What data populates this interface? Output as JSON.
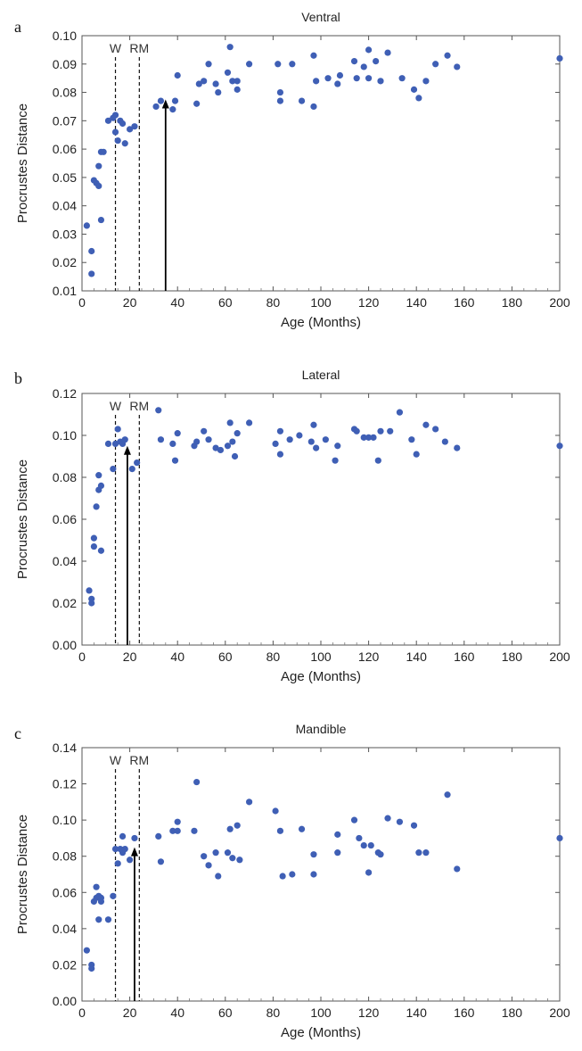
{
  "chart_data": [
    {
      "type": "scatter",
      "panel_letter": "a",
      "title": "Ventral",
      "xlabel": "Age (Months)",
      "ylabel": "Procrustes Distance",
      "xlim": [
        0,
        200
      ],
      "ylim": [
        0.01,
        0.1
      ],
      "xticks": [
        0,
        20,
        40,
        60,
        80,
        100,
        120,
        140,
        160,
        180,
        200
      ],
      "yticks": [
        0.01,
        0.02,
        0.03,
        0.04,
        0.05,
        0.06,
        0.07,
        0.08,
        0.09,
        0.1
      ],
      "ytick_labels": [
        "0.01",
        "0.02",
        "0.03",
        "0.04",
        "0.05",
        "0.06",
        "0.07",
        "0.08",
        "0.09",
        "0.10"
      ],
      "markers": [
        {
          "label": "W",
          "x": 14
        },
        {
          "label": "RM",
          "x": 24
        }
      ],
      "arrow": {
        "x": 35,
        "y_end": 0.0775
      },
      "point_color": "#3f5fb5",
      "points": [
        [
          2,
          0.033
        ],
        [
          4,
          0.024
        ],
        [
          4,
          0.016
        ],
        [
          5,
          0.049
        ],
        [
          6,
          0.048
        ],
        [
          7,
          0.054
        ],
        [
          7,
          0.047
        ],
        [
          8,
          0.059
        ],
        [
          8,
          0.035
        ],
        [
          9,
          0.059
        ],
        [
          11,
          0.07
        ],
        [
          13,
          0.071
        ],
        [
          14,
          0.072
        ],
        [
          14,
          0.066
        ],
        [
          15,
          0.063
        ],
        [
          16,
          0.07
        ],
        [
          17,
          0.069
        ],
        [
          18,
          0.062
        ],
        [
          20,
          0.067
        ],
        [
          22,
          0.068
        ],
        [
          31,
          0.075
        ],
        [
          33,
          0.077
        ],
        [
          38,
          0.074
        ],
        [
          39,
          0.077
        ],
        [
          40,
          0.086
        ],
        [
          48,
          0.076
        ],
        [
          49,
          0.083
        ],
        [
          51,
          0.084
        ],
        [
          53,
          0.09
        ],
        [
          56,
          0.083
        ],
        [
          57,
          0.08
        ],
        [
          61,
          0.087
        ],
        [
          62,
          0.096
        ],
        [
          63,
          0.084
        ],
        [
          65,
          0.084
        ],
        [
          65,
          0.081
        ],
        [
          70,
          0.09
        ],
        [
          82,
          0.09
        ],
        [
          83,
          0.08
        ],
        [
          83,
          0.077
        ],
        [
          88,
          0.09
        ],
        [
          92,
          0.077
        ],
        [
          97,
          0.075
        ],
        [
          97,
          0.093
        ],
        [
          98,
          0.084
        ],
        [
          103,
          0.085
        ],
        [
          107,
          0.083
        ],
        [
          108,
          0.086
        ],
        [
          114,
          0.091
        ],
        [
          115,
          0.085
        ],
        [
          118,
          0.089
        ],
        [
          120,
          0.095
        ],
        [
          120,
          0.085
        ],
        [
          123,
          0.091
        ],
        [
          125,
          0.084
        ],
        [
          128,
          0.094
        ],
        [
          134,
          0.085
        ],
        [
          139,
          0.081
        ],
        [
          141,
          0.078
        ],
        [
          144,
          0.084
        ],
        [
          148,
          0.09
        ],
        [
          153,
          0.093
        ],
        [
          157,
          0.089
        ],
        [
          200,
          0.092
        ]
      ]
    },
    {
      "type": "scatter",
      "panel_letter": "b",
      "title": "Lateral",
      "xlabel": "Age (Months)",
      "ylabel": "Procrustes Distance",
      "xlim": [
        0,
        200
      ],
      "ylim": [
        0.0,
        0.12
      ],
      "xticks": [
        0,
        20,
        40,
        60,
        80,
        100,
        120,
        140,
        160,
        180,
        200
      ],
      "yticks": [
        0.0,
        0.02,
        0.04,
        0.06,
        0.08,
        0.1,
        0.12
      ],
      "ytick_labels": [
        "0.00",
        "0.02",
        "0.04",
        "0.06",
        "0.08",
        "0.10",
        "0.12"
      ],
      "markers": [
        {
          "label": "W",
          "x": 14
        },
        {
          "label": "RM",
          "x": 24
        }
      ],
      "arrow": {
        "x": 19,
        "y_end": 0.095
      },
      "point_color": "#3f5fb5",
      "points": [
        [
          3,
          0.026
        ],
        [
          4,
          0.022
        ],
        [
          4,
          0.02
        ],
        [
          5,
          0.051
        ],
        [
          5,
          0.047
        ],
        [
          6,
          0.066
        ],
        [
          7,
          0.074
        ],
        [
          7,
          0.081
        ],
        [
          8,
          0.076
        ],
        [
          8,
          0.045
        ],
        [
          11,
          0.096
        ],
        [
          13,
          0.084
        ],
        [
          14,
          0.096
        ],
        [
          15,
          0.103
        ],
        [
          16,
          0.097
        ],
        [
          17,
          0.096
        ],
        [
          18,
          0.098
        ],
        [
          21,
          0.084
        ],
        [
          23,
          0.087
        ],
        [
          32,
          0.112
        ],
        [
          33,
          0.098
        ],
        [
          38,
          0.096
        ],
        [
          39,
          0.088
        ],
        [
          40,
          0.101
        ],
        [
          47,
          0.095
        ],
        [
          48,
          0.097
        ],
        [
          51,
          0.102
        ],
        [
          53,
          0.098
        ],
        [
          56,
          0.094
        ],
        [
          58,
          0.093
        ],
        [
          61,
          0.095
        ],
        [
          62,
          0.106
        ],
        [
          63,
          0.097
        ],
        [
          64,
          0.09
        ],
        [
          65,
          0.101
        ],
        [
          70,
          0.106
        ],
        [
          81,
          0.096
        ],
        [
          83,
          0.102
        ],
        [
          83,
          0.091
        ],
        [
          87,
          0.098
        ],
        [
          91,
          0.1
        ],
        [
          96,
          0.097
        ],
        [
          97,
          0.105
        ],
        [
          98,
          0.094
        ],
        [
          102,
          0.098
        ],
        [
          106,
          0.088
        ],
        [
          107,
          0.095
        ],
        [
          114,
          0.103
        ],
        [
          115,
          0.102
        ],
        [
          118,
          0.099
        ],
        [
          120,
          0.099
        ],
        [
          122,
          0.099
        ],
        [
          124,
          0.088
        ],
        [
          125,
          0.102
        ],
        [
          129,
          0.102
        ],
        [
          133,
          0.111
        ],
        [
          138,
          0.098
        ],
        [
          140,
          0.091
        ],
        [
          144,
          0.105
        ],
        [
          148,
          0.103
        ],
        [
          152,
          0.097
        ],
        [
          157,
          0.094
        ],
        [
          200,
          0.095
        ]
      ]
    },
    {
      "type": "scatter",
      "panel_letter": "c",
      "title": "Mandible",
      "xlabel": "Age (Months)",
      "ylabel": "Procrustes Distance",
      "xlim": [
        0,
        200
      ],
      "ylim": [
        0.0,
        0.14
      ],
      "xticks": [
        0,
        20,
        40,
        60,
        80,
        100,
        120,
        140,
        160,
        180,
        200
      ],
      "yticks": [
        0.0,
        0.02,
        0.04,
        0.06,
        0.08,
        0.1,
        0.12,
        0.14
      ],
      "ytick_labels": [
        "0.00",
        "0.02",
        "0.04",
        "0.06",
        "0.08",
        "0.10",
        "0.12",
        "0.14"
      ],
      "markers": [
        {
          "label": "W",
          "x": 14
        },
        {
          "label": "RM",
          "x": 24
        }
      ],
      "arrow": {
        "x": 22,
        "y_end": 0.085
      },
      "point_color": "#3f5fb5",
      "points": [
        [
          2,
          0.028
        ],
        [
          4,
          0.02
        ],
        [
          4,
          0.018
        ],
        [
          5,
          0.055
        ],
        [
          6,
          0.063
        ],
        [
          6,
          0.057
        ],
        [
          7,
          0.045
        ],
        [
          7,
          0.058
        ],
        [
          8,
          0.057
        ],
        [
          8,
          0.055
        ],
        [
          11,
          0.045
        ],
        [
          13,
          0.058
        ],
        [
          14,
          0.084
        ],
        [
          15,
          0.076
        ],
        [
          16,
          0.084
        ],
        [
          17,
          0.091
        ],
        [
          17,
          0.082
        ],
        [
          18,
          0.084
        ],
        [
          20,
          0.078
        ],
        [
          22,
          0.09
        ],
        [
          32,
          0.091
        ],
        [
          33,
          0.077
        ],
        [
          38,
          0.094
        ],
        [
          40,
          0.099
        ],
        [
          40,
          0.094
        ],
        [
          47,
          0.094
        ],
        [
          48,
          0.121
        ],
        [
          51,
          0.08
        ],
        [
          53,
          0.075
        ],
        [
          56,
          0.082
        ],
        [
          57,
          0.069
        ],
        [
          61,
          0.082
        ],
        [
          62,
          0.095
        ],
        [
          63,
          0.079
        ],
        [
          65,
          0.097
        ],
        [
          66,
          0.078
        ],
        [
          70,
          0.11
        ],
        [
          81,
          0.105
        ],
        [
          83,
          0.094
        ],
        [
          84,
          0.069
        ],
        [
          88,
          0.07
        ],
        [
          92,
          0.095
        ],
        [
          97,
          0.081
        ],
        [
          97,
          0.07
        ],
        [
          107,
          0.092
        ],
        [
          107,
          0.082
        ],
        [
          114,
          0.1
        ],
        [
          116,
          0.09
        ],
        [
          118,
          0.086
        ],
        [
          120,
          0.071
        ],
        [
          121,
          0.086
        ],
        [
          124,
          0.082
        ],
        [
          125,
          0.081
        ],
        [
          128,
          0.101
        ],
        [
          133,
          0.099
        ],
        [
          139,
          0.097
        ],
        [
          141,
          0.082
        ],
        [
          144,
          0.082
        ],
        [
          153,
          0.114
        ],
        [
          157,
          0.073
        ],
        [
          200,
          0.09
        ]
      ]
    }
  ]
}
